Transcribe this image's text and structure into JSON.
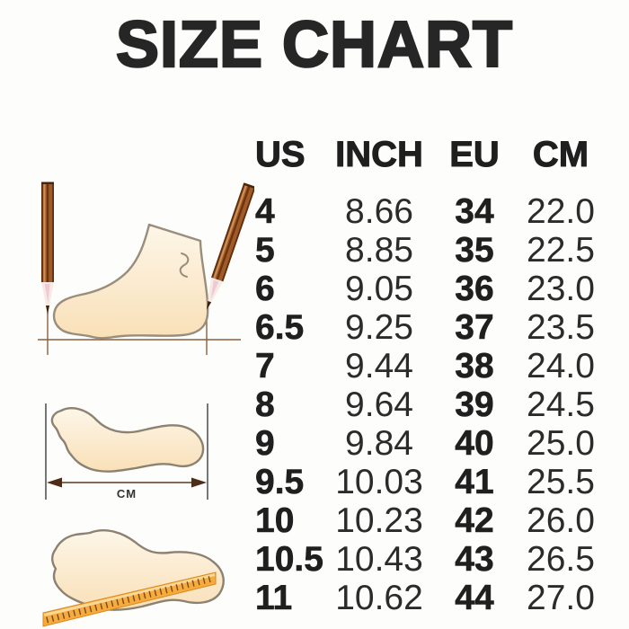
{
  "title": "SIZE CHART",
  "chart_data": {
    "type": "table",
    "title": "SIZE CHART",
    "columns": [
      "US",
      "INCH",
      "EU",
      "CM"
    ],
    "rows": [
      [
        "4",
        "8.66",
        "34",
        "22.0"
      ],
      [
        "5",
        "8.85",
        "35",
        "22.5"
      ],
      [
        "6",
        "9.05",
        "36",
        "23.0"
      ],
      [
        "6.5",
        "9.25",
        "37",
        "23.5"
      ],
      [
        "7",
        "9.44",
        "38",
        "24.0"
      ],
      [
        "8",
        "9.64",
        "39",
        "24.5"
      ],
      [
        "9",
        "9.84",
        "40",
        "25.0"
      ],
      [
        "9.5",
        "10.03",
        "41",
        "25.5"
      ],
      [
        "10",
        "10.23",
        "42",
        "26.0"
      ],
      [
        "10.5",
        "10.43",
        "43",
        "26.5"
      ],
      [
        "11",
        "10.62",
        "44",
        "27.0"
      ]
    ]
  },
  "illustrations": {
    "cm_label": "CM",
    "icons": [
      "foot-side-view",
      "pencil",
      "footprint-length-arrow",
      "footprint-ruler"
    ]
  },
  "colors": {
    "text": "#1f1f1f",
    "skin_light": "#fdf6e8",
    "skin_dark": "#f9e0b8",
    "outline": "#998d7c",
    "pencil_brown": "#a05b28",
    "measure_line": "#8b5e3c",
    "arrow_head": "#4f2c15",
    "ruler_orange": "#f6ab41",
    "background": "#fdfdfc"
  }
}
